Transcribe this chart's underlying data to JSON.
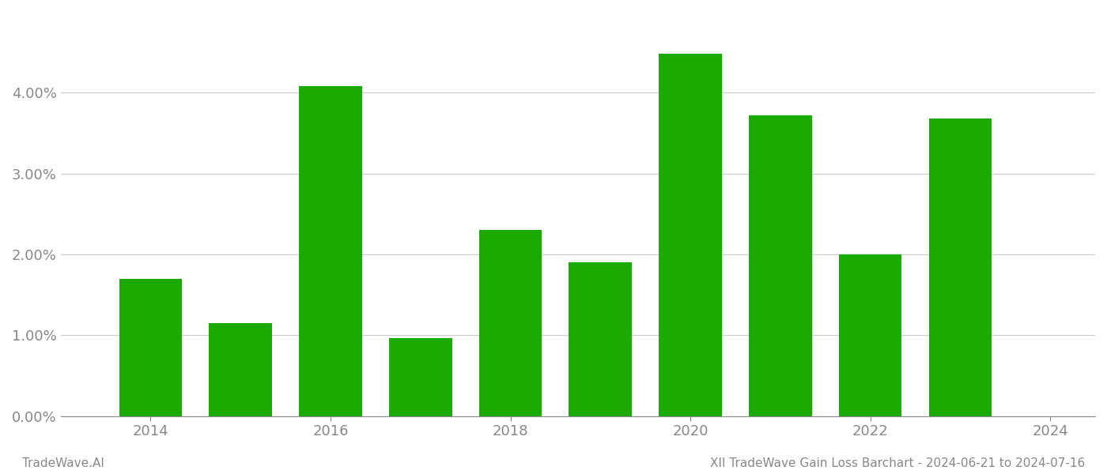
{
  "years": [
    2014,
    2015,
    2016,
    2017,
    2018,
    2019,
    2020,
    2021,
    2022,
    2023
  ],
  "values": [
    0.017,
    0.0115,
    0.0408,
    0.0096,
    0.023,
    0.019,
    0.0448,
    0.0372,
    0.02,
    0.0368
  ],
  "bar_color": "#1aaa00",
  "background_color": "#ffffff",
  "ylabel_color": "#888888",
  "xlabel_color": "#888888",
  "grid_color": "#cccccc",
  "ylim": [
    0,
    0.05
  ],
  "yticks": [
    0.0,
    0.01,
    0.02,
    0.03,
    0.04
  ],
  "xlim": [
    2013.0,
    2024.5
  ],
  "xticks": [
    2014,
    2016,
    2018,
    2020,
    2022,
    2024
  ],
  "footer_left": "TradeWave.AI",
  "footer_right": "XII TradeWave Gain Loss Barchart - 2024-06-21 to 2024-07-16",
  "footer_color": "#888888",
  "bar_width": 0.7
}
